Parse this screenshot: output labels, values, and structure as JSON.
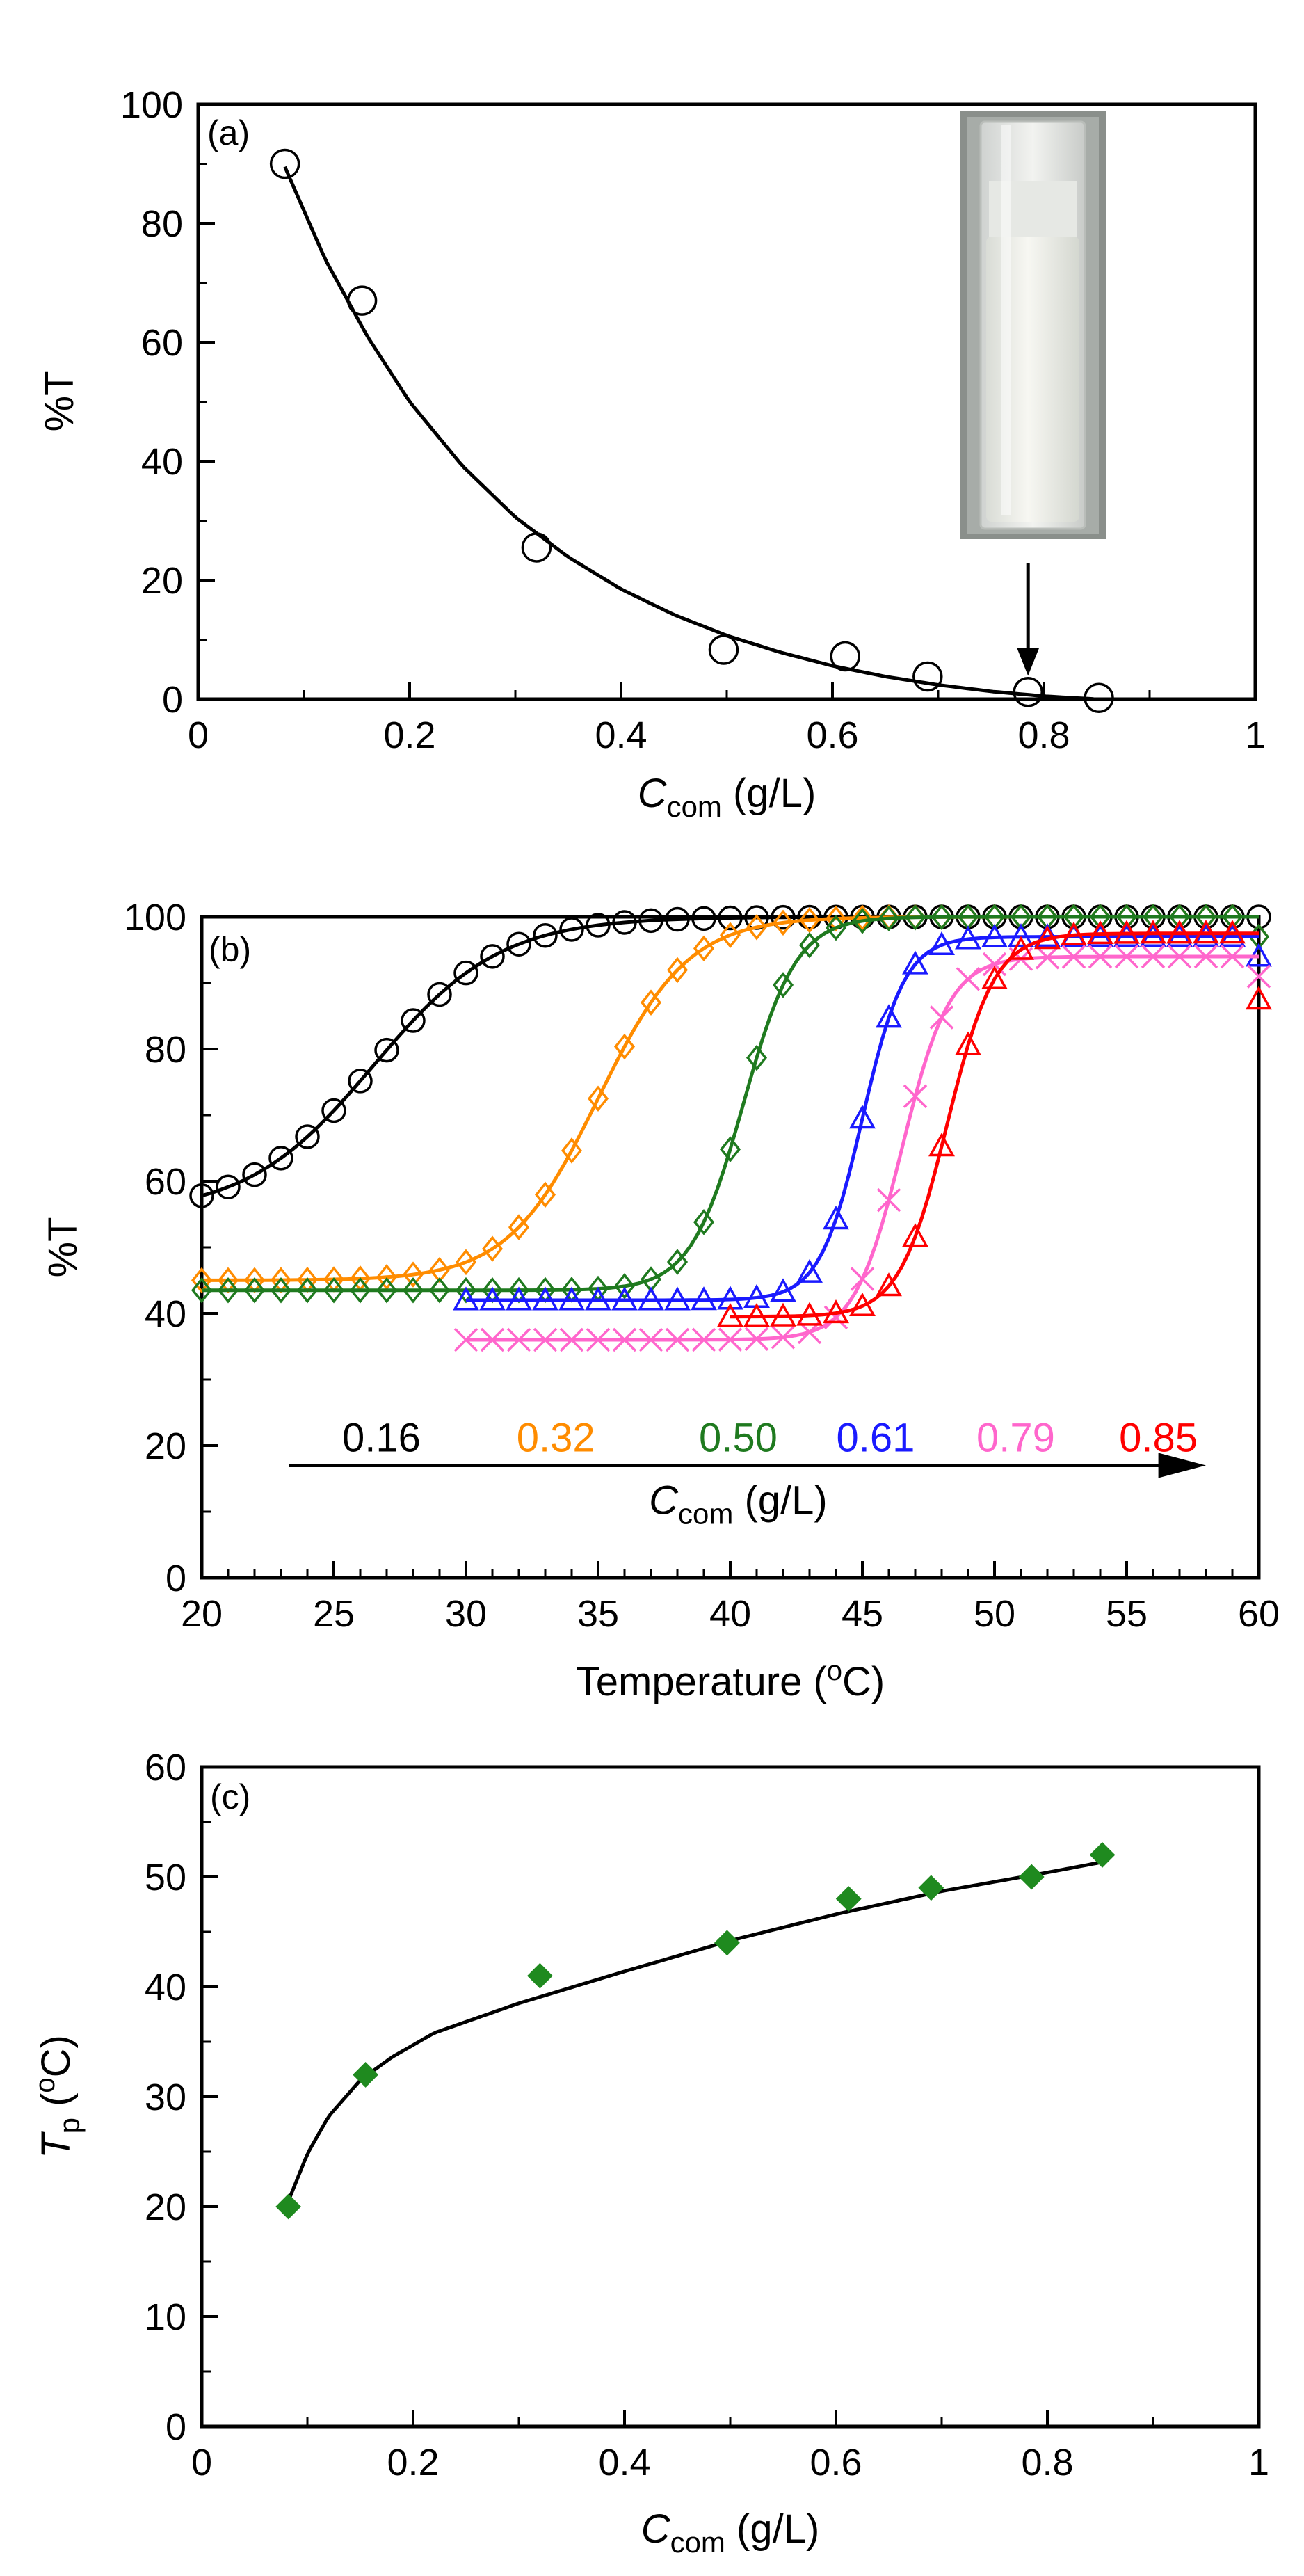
{
  "chart_data": [
    {
      "panel_label": "(a)",
      "type": "scatter",
      "xlabel_main": "C",
      "xlabel_sub": "com",
      "xlabel_unit": " (g/L)",
      "ylabel": "%T",
      "xlim": [
        0,
        1
      ],
      "ylim": [
        0,
        100
      ],
      "xticks": [
        "0",
        "0.2",
        "0.4",
        "0.6",
        "0.8",
        "1"
      ],
      "yticks": [
        "0",
        "20",
        "40",
        "60",
        "80",
        "100"
      ],
      "series": [
        {
          "marker": "circle-open",
          "x": [
            0.082,
            0.155,
            0.32,
            0.497,
            0.612,
            0.69,
            0.785,
            0.852
          ],
          "y": [
            90,
            67,
            25.5,
            8.3,
            7.2,
            3.8,
            1.2,
            0.2
          ]
        }
      ],
      "fit": {
        "x": [
          0.082,
          0.12,
          0.16,
          0.2,
          0.25,
          0.3,
          0.35,
          0.4,
          0.45,
          0.5,
          0.55,
          0.6,
          0.65,
          0.7,
          0.75,
          0.8,
          0.85
        ],
        "y": [
          89.5,
          74,
          61,
          50,
          39.2,
          30.6,
          23.9,
          18.5,
          14.2,
          10.7,
          7.9,
          5.6,
          3.8,
          2.4,
          1.3,
          0.5,
          0
        ]
      },
      "arrow_to": [
        0.785,
        3
      ],
      "inset_photo": "cuvette"
    },
    {
      "panel_label": "(b)",
      "type": "line",
      "xlabel_text": "Temperature (",
      "xlabel_sup": "o",
      "xlabel_unit": "C)",
      "ylabel": "%T",
      "xlim": [
        20,
        60
      ],
      "ylim": [
        0,
        100
      ],
      "xticks": [
        "20",
        "25",
        "30",
        "35",
        "40",
        "45",
        "50",
        "55",
        "60"
      ],
      "yticks": [
        "0",
        "20",
        "40",
        "60",
        "80",
        "100"
      ],
      "concentration_axis": {
        "label_main": "C",
        "label_sub": "com",
        "label_unit": " (g/L)",
        "values": [
          "0.16",
          "0.32",
          "0.50",
          "0.61",
          "0.79",
          "0.85"
        ],
        "arrow_y": 17
      },
      "series": [
        {
          "name": "0.16",
          "color": "#000000",
          "marker": "circle-open",
          "x_start": 20,
          "x_end": 60,
          "step": 1,
          "y0": 55,
          "y1": 100,
          "tmid": 26.5,
          "width": 2.4
        },
        {
          "name": "0.32",
          "color": "#ff8c00",
          "marker": "diamond-open",
          "x_start": 20,
          "x_end": 60,
          "step": 1,
          "y0": 45,
          "y1": 100,
          "tmid": 35,
          "width": 1.7
        },
        {
          "name": "0.50",
          "color": "#1f7a1f",
          "marker": "diamond-open",
          "x_start": 20,
          "x_end": 60,
          "step": 1,
          "y0": 43.5,
          "y1": 100,
          "tmid": 40.5,
          "width": 1.0
        },
        {
          "name": "0.61",
          "color": "#1a1aff",
          "marker": "triangle-open",
          "x_start": 30,
          "x_end": 60,
          "step": 1,
          "y0": 42,
          "y1": 97,
          "tmid": 45,
          "width": 0.8
        },
        {
          "name": "0.79",
          "color": "#ff66cc",
          "marker": "x",
          "x_start": 30,
          "x_end": 60,
          "step": 1,
          "y0": 36,
          "y1": 94,
          "tmid": 46.5,
          "width": 0.9
        },
        {
          "name": "0.85",
          "color": "#ff0000",
          "marker": "triangle-open",
          "x_start": 40,
          "x_end": 60,
          "step": 1,
          "y0": 39.5,
          "y1": 97.5,
          "tmid": 48.2,
          "width": 0.9
        }
      ]
    },
    {
      "panel_label": "(c)",
      "type": "scatter",
      "xlabel_main": "C",
      "xlabel_sub": "com",
      "xlabel_unit": " (g/L)",
      "ylabel_main": "T",
      "ylabel_sub": "p",
      "ylabel_unit1": " (",
      "ylabel_sup": "o",
      "ylabel_unit2": "C)",
      "xlim": [
        0,
        1
      ],
      "ylim": [
        0,
        60
      ],
      "xticks": [
        "0",
        "0.2",
        "0.4",
        "0.6",
        "0.8",
        "1"
      ],
      "yticks": [
        "0",
        "10",
        "20",
        "30",
        "40",
        "50",
        "60"
      ],
      "series": [
        {
          "color": "#1f8a1f",
          "marker": "diamond-filled",
          "x": [
            0.082,
            0.155,
            0.32,
            0.497,
            0.612,
            0.69,
            0.785,
            0.852
          ],
          "y": [
            20,
            32,
            41,
            44,
            48,
            49,
            50,
            52
          ]
        }
      ],
      "fit": {
        "x": [
          0.082,
          0.1,
          0.12,
          0.15,
          0.18,
          0.22,
          0.3,
          0.4,
          0.5,
          0.6,
          0.7,
          0.8,
          0.855
        ],
        "y": [
          20.5,
          24.8,
          28.2,
          31.5,
          33.6,
          35.8,
          38.5,
          41.4,
          44.2,
          46.6,
          48.7,
          50.4,
          51.4
        ]
      }
    }
  ]
}
